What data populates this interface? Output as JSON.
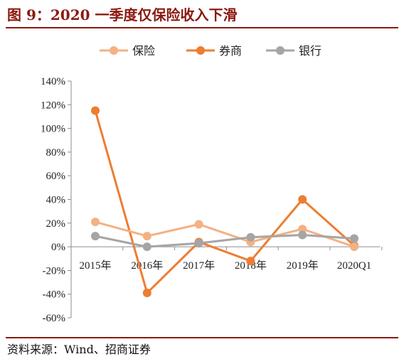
{
  "header": {
    "title": "图 9：2020 一季度仅保险收入下滑"
  },
  "footer": {
    "source": "资料来源：Wind、招商证券"
  },
  "chart_data": {
    "type": "line",
    "title": "",
    "xlabel": "",
    "ylabel": "",
    "categories": [
      "2015年",
      "2016年",
      "2017年",
      "2018年",
      "2019年",
      "2020Q1"
    ],
    "series": [
      {
        "name": "保险",
        "color": "#f4b183",
        "values": [
          21,
          9,
          19,
          4,
          15,
          0
        ]
      },
      {
        "name": "券商",
        "color": "#ed7d31",
        "values": [
          115,
          -39,
          4,
          -12,
          40,
          1
        ]
      },
      {
        "name": "银行",
        "color": "#a5a5a5",
        "values": [
          9,
          0,
          3,
          8,
          10,
          7
        ]
      }
    ],
    "ylim": [
      -60,
      140
    ],
    "yticks": [
      -60,
      -40,
      -20,
      0,
      20,
      40,
      60,
      80,
      100,
      120,
      140
    ],
    "ytick_labels": [
      "-60%",
      "-40%",
      "-20%",
      "0%",
      "20%",
      "40%",
      "60%",
      "80%",
      "100%",
      "120%",
      "140%"
    ],
    "grid": false,
    "legend": "top"
  }
}
